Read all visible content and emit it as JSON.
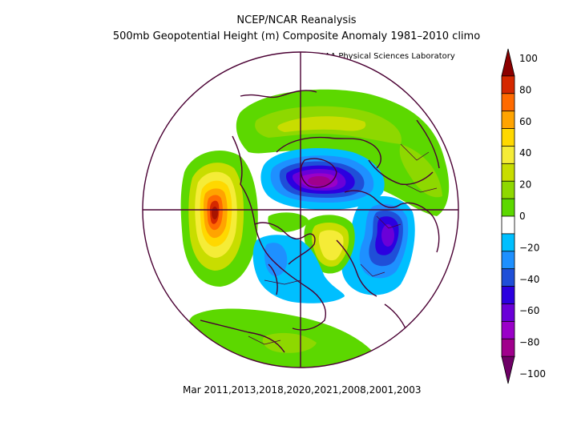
{
  "title": "NCEP/NCAR Reanalysis",
  "subtitle": "500mb Geopotential Height (m) Composite Anomaly 1981–2010 climo",
  "credit": "NOAA Physical Sciences Laboratory",
  "footer": "Mar 2011,2013,2018,2020,2021,2008,2001,2003",
  "colorbar": {
    "labels": [
      "100",
      "80",
      "60",
      "40",
      "20",
      "0",
      "−20",
      "−40",
      "−60",
      "−80",
      "−100"
    ],
    "colors": [
      "#8b0000",
      "#d52800",
      "#ff6a00",
      "#ffa400",
      "#ffd800",
      "#f5ec37",
      "#c8dd00",
      "#8ed800",
      "#5cd800",
      "#ffffff",
      "#00bfff",
      "#1e90ff",
      "#1f4fd8",
      "#2b00e0",
      "#6a00d8",
      "#9a00c8",
      "#a0008c",
      "#6e0066"
    ]
  },
  "map": {
    "projection": "polar-stereographic-north",
    "anomalies": [
      {
        "region": "north-pacific",
        "sign": "positive",
        "peak": 100
      },
      {
        "region": "arctic-greenland",
        "sign": "negative",
        "peak": -80
      },
      {
        "region": "western-europe",
        "sign": "negative",
        "peak": -60
      },
      {
        "region": "north-america",
        "sign": "negative",
        "peak": -20
      },
      {
        "region": "siberia",
        "sign": "positive",
        "peak": 40
      }
    ]
  }
}
